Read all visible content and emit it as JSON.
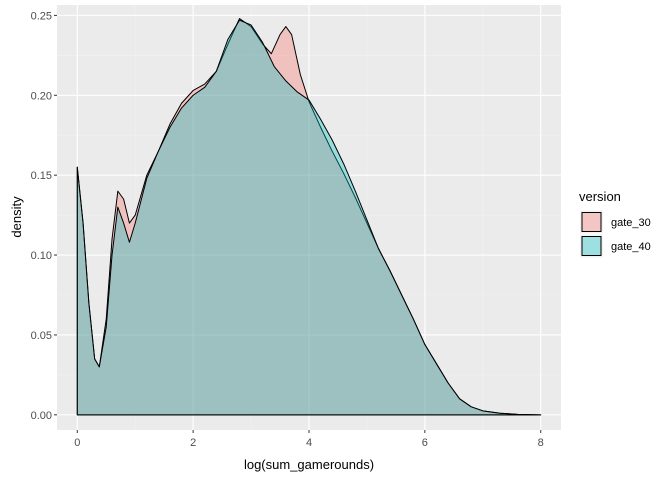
{
  "chart_data": {
    "type": "area",
    "xlabel": "log(sum_gamerounds)",
    "ylabel": "density",
    "xlim": [
      -0.35,
      8.35
    ],
    "ylim": [
      -0.0095,
      0.2565
    ],
    "x_ticks": [
      0,
      2,
      4,
      6,
      8
    ],
    "x_tick_labels": [
      "0",
      "2",
      "4",
      "6",
      "8"
    ],
    "y_ticks": [
      0.0,
      0.05,
      0.1,
      0.15,
      0.2,
      0.25
    ],
    "y_tick_labels": [
      "0.00",
      "0.05",
      "0.10",
      "0.15",
      "0.20",
      "0.25"
    ],
    "grid": true,
    "legend": {
      "title": "version",
      "position": "right"
    },
    "series": [
      {
        "name": "gate_30",
        "fill": "#F8766D",
        "points": [
          [
            0.0,
            0.0
          ],
          [
            0.0,
            0.155
          ],
          [
            0.1,
            0.12
          ],
          [
            0.2,
            0.07
          ],
          [
            0.3,
            0.035
          ],
          [
            0.38,
            0.03
          ],
          [
            0.5,
            0.06
          ],
          [
            0.6,
            0.11
          ],
          [
            0.7,
            0.14
          ],
          [
            0.8,
            0.135
          ],
          [
            0.9,
            0.12
          ],
          [
            1.0,
            0.125
          ],
          [
            1.2,
            0.15
          ],
          [
            1.4,
            0.165
          ],
          [
            1.6,
            0.182
          ],
          [
            1.8,
            0.195
          ],
          [
            2.0,
            0.203
          ],
          [
            2.2,
            0.207
          ],
          [
            2.4,
            0.215
          ],
          [
            2.6,
            0.232
          ],
          [
            2.8,
            0.248
          ],
          [
            3.0,
            0.243
          ],
          [
            3.2,
            0.232
          ],
          [
            3.35,
            0.226
          ],
          [
            3.5,
            0.238
          ],
          [
            3.6,
            0.243
          ],
          [
            3.7,
            0.238
          ],
          [
            3.85,
            0.213
          ],
          [
            4.0,
            0.196
          ],
          [
            4.2,
            0.18
          ],
          [
            4.4,
            0.165
          ],
          [
            4.6,
            0.151
          ],
          [
            4.8,
            0.136
          ],
          [
            5.0,
            0.12
          ],
          [
            5.2,
            0.104
          ],
          [
            5.4,
            0.09
          ],
          [
            5.6,
            0.075
          ],
          [
            5.8,
            0.06
          ],
          [
            6.0,
            0.044
          ],
          [
            6.2,
            0.032
          ],
          [
            6.4,
            0.02
          ],
          [
            6.6,
            0.01
          ],
          [
            6.8,
            0.005
          ],
          [
            7.0,
            0.0025
          ],
          [
            7.3,
            0.001
          ],
          [
            7.6,
            0.0003
          ],
          [
            8.0,
            0.0
          ],
          [
            8.0,
            0.0
          ]
        ]
      },
      {
        "name": "gate_40",
        "fill": "#00BFC4",
        "points": [
          [
            0.0,
            0.0
          ],
          [
            0.0,
            0.155
          ],
          [
            0.1,
            0.12
          ],
          [
            0.2,
            0.07
          ],
          [
            0.3,
            0.035
          ],
          [
            0.38,
            0.03
          ],
          [
            0.5,
            0.055
          ],
          [
            0.6,
            0.1
          ],
          [
            0.7,
            0.13
          ],
          [
            0.8,
            0.12
          ],
          [
            0.9,
            0.108
          ],
          [
            1.0,
            0.12
          ],
          [
            1.2,
            0.148
          ],
          [
            1.4,
            0.165
          ],
          [
            1.6,
            0.18
          ],
          [
            1.8,
            0.192
          ],
          [
            2.0,
            0.2
          ],
          [
            2.2,
            0.205
          ],
          [
            2.4,
            0.215
          ],
          [
            2.6,
            0.235
          ],
          [
            2.8,
            0.247
          ],
          [
            3.0,
            0.244
          ],
          [
            3.2,
            0.233
          ],
          [
            3.4,
            0.218
          ],
          [
            3.6,
            0.209
          ],
          [
            3.8,
            0.202
          ],
          [
            4.0,
            0.197
          ],
          [
            4.2,
            0.185
          ],
          [
            4.4,
            0.172
          ],
          [
            4.6,
            0.157
          ],
          [
            4.8,
            0.14
          ],
          [
            5.0,
            0.122
          ],
          [
            5.2,
            0.104
          ],
          [
            5.4,
            0.09
          ],
          [
            5.6,
            0.075
          ],
          [
            5.8,
            0.06
          ],
          [
            6.0,
            0.044
          ],
          [
            6.2,
            0.032
          ],
          [
            6.4,
            0.02
          ],
          [
            6.6,
            0.01
          ],
          [
            6.8,
            0.005
          ],
          [
            7.0,
            0.0025
          ],
          [
            7.3,
            0.001
          ],
          [
            7.6,
            0.0003
          ],
          [
            8.0,
            0.0
          ],
          [
            8.0,
            0.0
          ]
        ]
      }
    ],
    "colors": {
      "panel_background": "#EBEBEB",
      "grid_major": "#FFFFFF",
      "grid_minor": "#F2F2F2",
      "outline": "#000000"
    },
    "fill_opacity": 0.35
  }
}
